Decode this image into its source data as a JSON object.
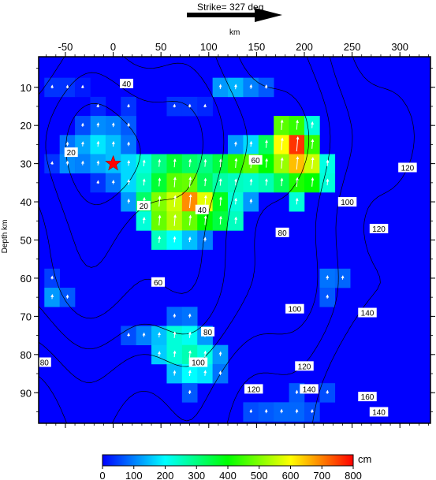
{
  "header": {
    "strike_label": "Strike= 327 deg"
  },
  "chart_data": {
    "type": "heatmap",
    "title": "",
    "xlabel": "km",
    "ylabel": "Depth km",
    "xlim": [
      -78,
      332
    ],
    "ylim": [
      98,
      2
    ],
    "x_ticks": [
      -50,
      0,
      50,
      100,
      150,
      200,
      250,
      300
    ],
    "y_ticks": [
      10,
      20,
      30,
      40,
      50,
      60,
      70,
      80,
      90
    ],
    "cell_size_km": {
      "dx": 16,
      "dy": 5
    },
    "hypocenter": {
      "x": 0,
      "y": 30
    },
    "colorbar": {
      "unit": "cm",
      "min": 0,
      "max": 800,
      "ticks": [
        0,
        100,
        200,
        300,
        400,
        500,
        600,
        700,
        800
      ]
    },
    "slip_cells": [
      {
        "x": -64,
        "y": 10,
        "v": 40
      },
      {
        "x": -48,
        "y": 10,
        "v": 40
      },
      {
        "x": -32,
        "y": 10,
        "v": 20
      },
      {
        "x": 112,
        "y": 10,
        "v": 120
      },
      {
        "x": 128,
        "y": 10,
        "v": 140
      },
      {
        "x": 144,
        "y": 10,
        "v": 100
      },
      {
        "x": 160,
        "y": 10,
        "v": 70
      },
      {
        "x": -16,
        "y": 15,
        "v": 30
      },
      {
        "x": 16,
        "y": 15,
        "v": 40
      },
      {
        "x": 64,
        "y": 15,
        "v": 40
      },
      {
        "x": 80,
        "y": 15,
        "v": 40
      },
      {
        "x": 96,
        "y": 15,
        "v": 30
      },
      {
        "x": 0,
        "y": 20,
        "v": 100
      },
      {
        "x": -16,
        "y": 20,
        "v": 110
      },
      {
        "x": -32,
        "y": 20,
        "v": 60
      },
      {
        "x": 16,
        "y": 20,
        "v": 70
      },
      {
        "x": 176,
        "y": 20,
        "v": 470
      },
      {
        "x": 192,
        "y": 20,
        "v": 440
      },
      {
        "x": 208,
        "y": 20,
        "v": 230
      },
      {
        "x": -48,
        "y": 25,
        "v": 90
      },
      {
        "x": -32,
        "y": 25,
        "v": 130
      },
      {
        "x": -16,
        "y": 25,
        "v": 180
      },
      {
        "x": 0,
        "y": 25,
        "v": 150
      },
      {
        "x": 16,
        "y": 25,
        "v": 90
      },
      {
        "x": 128,
        "y": 25,
        "v": 120
      },
      {
        "x": 144,
        "y": 25,
        "v": 170
      },
      {
        "x": 160,
        "y": 25,
        "v": 330
      },
      {
        "x": 176,
        "y": 25,
        "v": 600
      },
      {
        "x": 192,
        "y": 25,
        "v": 760
      },
      {
        "x": 208,
        "y": 25,
        "v": 440
      },
      {
        "x": -64,
        "y": 30,
        "v": 40
      },
      {
        "x": -48,
        "y": 30,
        "v": 110
      },
      {
        "x": -32,
        "y": 30,
        "v": 100
      },
      {
        "x": -16,
        "y": 30,
        "v": 130
      },
      {
        "x": 0,
        "y": 30,
        "v": 150
      },
      {
        "x": 16,
        "y": 30,
        "v": 170
      },
      {
        "x": 32,
        "y": 30,
        "v": 230
      },
      {
        "x": 48,
        "y": 30,
        "v": 300
      },
      {
        "x": 64,
        "y": 30,
        "v": 360
      },
      {
        "x": 80,
        "y": 30,
        "v": 320
      },
      {
        "x": 96,
        "y": 30,
        "v": 300
      },
      {
        "x": 112,
        "y": 30,
        "v": 350
      },
      {
        "x": 128,
        "y": 30,
        "v": 430
      },
      {
        "x": 144,
        "y": 30,
        "v": 470
      },
      {
        "x": 160,
        "y": 30,
        "v": 400
      },
      {
        "x": 176,
        "y": 30,
        "v": 520
      },
      {
        "x": 192,
        "y": 30,
        "v": 650
      },
      {
        "x": 208,
        "y": 30,
        "v": 560
      },
      {
        "x": 224,
        "y": 30,
        "v": 220
      },
      {
        "x": -16,
        "y": 35,
        "v": 40
      },
      {
        "x": 0,
        "y": 35,
        "v": 90
      },
      {
        "x": 16,
        "y": 35,
        "v": 170
      },
      {
        "x": 32,
        "y": 35,
        "v": 250
      },
      {
        "x": 48,
        "y": 35,
        "v": 360
      },
      {
        "x": 64,
        "y": 35,
        "v": 470
      },
      {
        "x": 80,
        "y": 35,
        "v": 480
      },
      {
        "x": 96,
        "y": 35,
        "v": 330
      },
      {
        "x": 112,
        "y": 35,
        "v": 270
      },
      {
        "x": 128,
        "y": 35,
        "v": 250
      },
      {
        "x": 144,
        "y": 35,
        "v": 240
      },
      {
        "x": 160,
        "y": 35,
        "v": 260
      },
      {
        "x": 176,
        "y": 35,
        "v": 330
      },
      {
        "x": 192,
        "y": 35,
        "v": 420
      },
      {
        "x": 208,
        "y": 35,
        "v": 400
      },
      {
        "x": 224,
        "y": 35,
        "v": 230
      },
      {
        "x": 16,
        "y": 40,
        "v": 120
      },
      {
        "x": 32,
        "y": 40,
        "v": 320
      },
      {
        "x": 48,
        "y": 40,
        "v": 500
      },
      {
        "x": 64,
        "y": 40,
        "v": 560
      },
      {
        "x": 80,
        "y": 40,
        "v": 690
      },
      {
        "x": 96,
        "y": 40,
        "v": 580
      },
      {
        "x": 112,
        "y": 40,
        "v": 380
      },
      {
        "x": 128,
        "y": 40,
        "v": 230
      },
      {
        "x": 144,
        "y": 40,
        "v": 120
      },
      {
        "x": 192,
        "y": 40,
        "v": 230
      },
      {
        "x": 32,
        "y": 45,
        "v": 230
      },
      {
        "x": 48,
        "y": 45,
        "v": 480
      },
      {
        "x": 64,
        "y": 45,
        "v": 540
      },
      {
        "x": 80,
        "y": 45,
        "v": 480
      },
      {
        "x": 96,
        "y": 45,
        "v": 400
      },
      {
        "x": 112,
        "y": 45,
        "v": 350
      },
      {
        "x": 128,
        "y": 45,
        "v": 250
      },
      {
        "x": 48,
        "y": 50,
        "v": 250
      },
      {
        "x": 64,
        "y": 50,
        "v": 200
      },
      {
        "x": 80,
        "y": 50,
        "v": 150
      },
      {
        "x": 96,
        "y": 50,
        "v": 100
      },
      {
        "x": 224,
        "y": 60,
        "v": 90
      },
      {
        "x": 240,
        "y": 60,
        "v": 80
      },
      {
        "x": -64,
        "y": 60,
        "v": 50
      },
      {
        "x": -64,
        "y": 65,
        "v": 120
      },
      {
        "x": -48,
        "y": 65,
        "v": 70
      },
      {
        "x": 224,
        "y": 65,
        "v": 70
      },
      {
        "x": 64,
        "y": 70,
        "v": 80
      },
      {
        "x": 80,
        "y": 70,
        "v": 90
      },
      {
        "x": 16,
        "y": 75,
        "v": 60
      },
      {
        "x": 32,
        "y": 75,
        "v": 100
      },
      {
        "x": 48,
        "y": 75,
        "v": 150
      },
      {
        "x": 64,
        "y": 75,
        "v": 230
      },
      {
        "x": 80,
        "y": 75,
        "v": 210
      },
      {
        "x": 96,
        "y": 75,
        "v": 120
      },
      {
        "x": 48,
        "y": 80,
        "v": 160
      },
      {
        "x": 64,
        "y": 80,
        "v": 230
      },
      {
        "x": 80,
        "y": 80,
        "v": 260
      },
      {
        "x": 96,
        "y": 80,
        "v": 220
      },
      {
        "x": 112,
        "y": 80,
        "v": 120
      },
      {
        "x": 64,
        "y": 85,
        "v": 150
      },
      {
        "x": 80,
        "y": 85,
        "v": 200
      },
      {
        "x": 96,
        "y": 85,
        "v": 180
      },
      {
        "x": 112,
        "y": 85,
        "v": 90
      },
      {
        "x": 80,
        "y": 90,
        "v": 70
      },
      {
        "x": 192,
        "y": 90,
        "v": 70
      },
      {
        "x": 224,
        "y": 90,
        "v": 60
      },
      {
        "x": 144,
        "y": 95,
        "v": 60
      },
      {
        "x": 160,
        "y": 95,
        "v": 70
      },
      {
        "x": 176,
        "y": 95,
        "v": 80
      },
      {
        "x": 192,
        "y": 95,
        "v": 80
      },
      {
        "x": 208,
        "y": 95,
        "v": 60
      }
    ],
    "contour_labels": [
      {
        "text": "40",
        "x": 14,
        "y": 9
      },
      {
        "text": "20",
        "x": -44,
        "y": 27
      },
      {
        "text": "20",
        "x": 32,
        "y": 41
      },
      {
        "text": "40",
        "x": 93,
        "y": 42
      },
      {
        "text": "60",
        "x": 149,
        "y": 29
      },
      {
        "text": "80",
        "x": 177,
        "y": 48
      },
      {
        "text": "100",
        "x": 245,
        "y": 40
      },
      {
        "text": "120",
        "x": 308,
        "y": 31
      },
      {
        "text": "120",
        "x": 278,
        "y": 47
      },
      {
        "text": "60",
        "x": 47,
        "y": 61
      },
      {
        "text": "80",
        "x": 99,
        "y": 74
      },
      {
        "text": "100",
        "x": 190,
        "y": 68
      },
      {
        "text": "140",
        "x": 266,
        "y": 69
      },
      {
        "text": "100",
        "x": 89,
        "y": 82
      },
      {
        "text": "120",
        "x": 200,
        "y": 83
      },
      {
        "text": "120",
        "x": 147,
        "y": 89
      },
      {
        "text": "140",
        "x": 205,
        "y": 89
      },
      {
        "text": "160",
        "x": 266,
        "y": 91
      },
      {
        "text": "140",
        "x": 278,
        "y": 95
      },
      {
        "text": "80",
        "x": -72,
        "y": 82
      }
    ]
  }
}
